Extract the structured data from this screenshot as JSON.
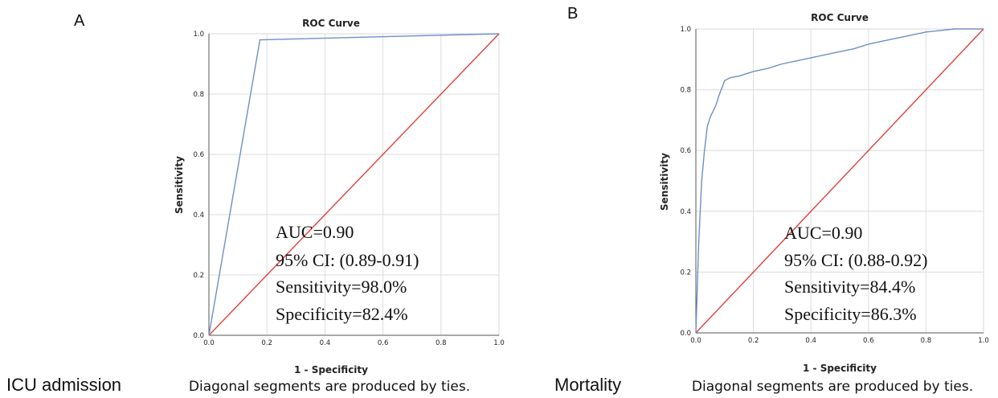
{
  "chart_data": [
    {
      "type": "line",
      "panel": "A",
      "title": "ROC Curve",
      "xlabel": "1 - Specificity",
      "ylabel": "Sensitivity",
      "xlim": [
        0.0,
        1.0
      ],
      "ylim": [
        0.0,
        1.0
      ],
      "xticks": [
        "0.0",
        "0.2",
        "0.4",
        "0.6",
        "0.8",
        "1.0"
      ],
      "yticks": [
        "0.0",
        "0.2",
        "0.4",
        "0.6",
        "0.8",
        "1.0"
      ],
      "grid": true,
      "series": [
        {
          "color": "#6f8fc6",
          "x": [
            0.0,
            0.176,
            1.0
          ],
          "y": [
            0.0,
            0.98,
            1.0
          ]
        },
        {
          "color": "#e0403a",
          "x": [
            0.0,
            1.0
          ],
          "y": [
            0.0,
            1.0
          ]
        }
      ],
      "annotations": [
        "AUC=0.90",
        "95% CI: (0.89-0.91)",
        "Sensitivity=98.0%",
        "Specificity=82.4%"
      ],
      "footnote": "Diagonal segments are produced by ties.",
      "side_label": "ICU admission"
    },
    {
      "type": "line",
      "panel": "B",
      "title": "ROC Curve",
      "xlabel": "1 - Specificity",
      "ylabel": "Sensitivity",
      "xlim": [
        0.0,
        1.0
      ],
      "ylim": [
        0.0,
        1.0
      ],
      "xticks": [
        "0.0",
        "0.2",
        "0.4",
        "0.6",
        "0.8",
        "1.0"
      ],
      "yticks": [
        "0.0",
        "0.2",
        "0.4",
        "0.6",
        "0.8",
        "1.0"
      ],
      "grid": true,
      "series": [
        {
          "color": "#6f8fc6",
          "x": [
            0.0,
            0.01,
            0.02,
            0.03,
            0.04,
            0.05,
            0.06,
            0.07,
            0.08,
            0.1,
            0.12,
            0.15,
            0.2,
            0.25,
            0.3,
            0.35,
            0.4,
            0.45,
            0.5,
            0.55,
            0.6,
            0.65,
            0.7,
            0.75,
            0.8,
            0.85,
            0.9,
            0.95,
            1.0
          ],
          "y": [
            0.0,
            0.3,
            0.5,
            0.6,
            0.68,
            0.71,
            0.73,
            0.75,
            0.78,
            0.83,
            0.84,
            0.845,
            0.86,
            0.87,
            0.885,
            0.895,
            0.905,
            0.915,
            0.925,
            0.935,
            0.95,
            0.96,
            0.97,
            0.98,
            0.99,
            0.995,
            1.0,
            1.0,
            1.0
          ]
        },
        {
          "color": "#e0403a",
          "x": [
            0.0,
            1.0
          ],
          "y": [
            0.0,
            1.0
          ]
        }
      ],
      "annotations": [
        "AUC=0.90",
        "95% CI: (0.88-0.92)",
        "Sensitivity=84.4%",
        "Specificity=86.3%"
      ],
      "footnote": "Diagonal segments are produced by ties.",
      "side_label": "Mortality"
    }
  ]
}
